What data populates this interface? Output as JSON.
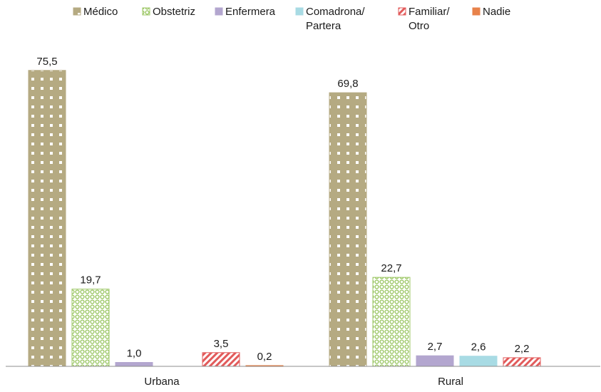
{
  "chart_data": {
    "type": "bar",
    "categories": [
      "Urbana",
      "Rural"
    ],
    "series": [
      {
        "name": "Médico",
        "values": [
          75.5,
          69.8
        ],
        "labels": [
          "75,5",
          "69,8"
        ],
        "color": "#bbb08a",
        "pattern": "dots"
      },
      {
        "name": "Obstetriz",
        "values": [
          19.7,
          22.7
        ],
        "labels": [
          "19,7",
          "22,7"
        ],
        "color": "#b9d88a",
        "pattern": "rings"
      },
      {
        "name": "Enfermera",
        "values": [
          1.0,
          2.7
        ],
        "labels": [
          "1,0",
          "2,7"
        ],
        "color": "#b3a6cf",
        "pattern": "solid"
      },
      {
        "name": "Comadrona/ Partera",
        "values": [
          null,
          2.6
        ],
        "labels": [
          "",
          "2,6"
        ],
        "color": "#a8dbe4",
        "pattern": "solid"
      },
      {
        "name": "Familiar/ Otro",
        "values": [
          3.5,
          2.2
        ],
        "labels": [
          "3,5",
          "2,2"
        ],
        "color": "#e69a9a",
        "pattern": "diagonal"
      },
      {
        "name": "Nadie",
        "values": [
          0.2,
          null
        ],
        "labels": [
          "0,2",
          ""
        ],
        "color": "#e8824a",
        "pattern": "solid"
      }
    ],
    "legend": {
      "placement": "top",
      "entries": [
        {
          "line1": "Médico",
          "line2": ""
        },
        {
          "line1": "Obstetriz",
          "line2": ""
        },
        {
          "line1": "Enfermera",
          "line2": ""
        },
        {
          "line1": "Comadrona/",
          "line2": "Partera"
        },
        {
          "line1": "Familiar/",
          "line2": "Otro"
        },
        {
          "line1": "Nadie",
          "line2": ""
        }
      ]
    },
    "ylim": [
      0,
      80
    ],
    "grid": false
  }
}
